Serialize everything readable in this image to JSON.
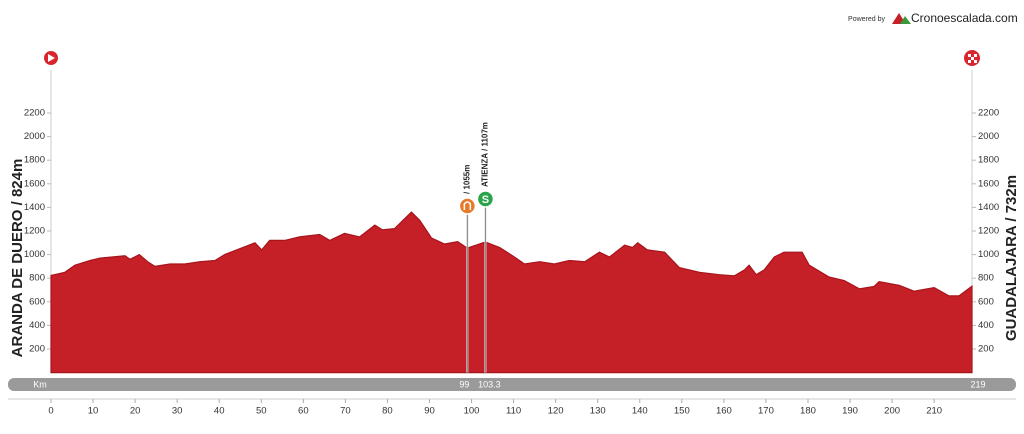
{
  "chart_data": {
    "type": "area",
    "powered_by": "Powered by",
    "brand": "Cronoescalada.com",
    "start_label": "ARANDA DE DUERO / 824m",
    "finish_label": "GUADALAJARA / 732m",
    "x_axis_label": "Km",
    "color": "#c51f28",
    "x": [
      0,
      3.3,
      5.7,
      9.3,
      11.7,
      17.6,
      18.8,
      21,
      23,
      24.7,
      28.3,
      31.8,
      35.4,
      39,
      41.3,
      44.9,
      48.5,
      50.1,
      52,
      55.6,
      59.1,
      63.9,
      66.3,
      69.8,
      73.4,
      77,
      78.8,
      81.7,
      85.7,
      87.7,
      90.5,
      93.6,
      96.7,
      99,
      103.3,
      106.7,
      110.2,
      112.6,
      116.2,
      119.7,
      123.3,
      126.9,
      130.4,
      132.8,
      136.4,
      138.3,
      139.5,
      141.8,
      145.9,
      149.4,
      154.2,
      158.9,
      162.5,
      164.9,
      166,
      167.7,
      169.6,
      172,
      174.3,
      178.6,
      180.3,
      185,
      188.6,
      192.2,
      195.7,
      196.9,
      201.7,
      205.2,
      210,
      213.5,
      215.9,
      219
    ],
    "values": [
      824,
      850,
      910,
      950,
      970,
      990,
      960,
      1000,
      940,
      900,
      920,
      920,
      940,
      950,
      1000,
      1050,
      1100,
      1040,
      1120,
      1120,
      1150,
      1170,
      1120,
      1180,
      1150,
      1250,
      1210,
      1220,
      1360,
      1290,
      1140,
      1090,
      1110,
      1055,
      1107,
      1060,
      980,
      920,
      940,
      920,
      950,
      940,
      1020,
      980,
      1080,
      1060,
      1100,
      1040,
      1020,
      890,
      850,
      830,
      820,
      870,
      910,
      830,
      870,
      980,
      1020,
      1020,
      910,
      810,
      780,
      710,
      730,
      770,
      740,
      690,
      720,
      650,
      650,
      732
    ],
    "xlim": [
      0,
      219
    ],
    "xticks": [
      0,
      10,
      20,
      30,
      40,
      50,
      60,
      70,
      80,
      90,
      100,
      110,
      120,
      130,
      140,
      150,
      160,
      170,
      180,
      190,
      200,
      210
    ],
    "ylim": [
      0,
      2200
    ],
    "yticks": [
      200,
      400,
      600,
      800,
      1000,
      1200,
      1400,
      1600,
      1800,
      2000,
      2200
    ],
    "markers": [
      {
        "km": 99,
        "label": "/ 1055m",
        "color": "#e8792a"
      },
      {
        "km": 103.3,
        "label": "ATIENZA / 1107m",
        "icon": "S",
        "color": "#2aa44a"
      }
    ]
  }
}
